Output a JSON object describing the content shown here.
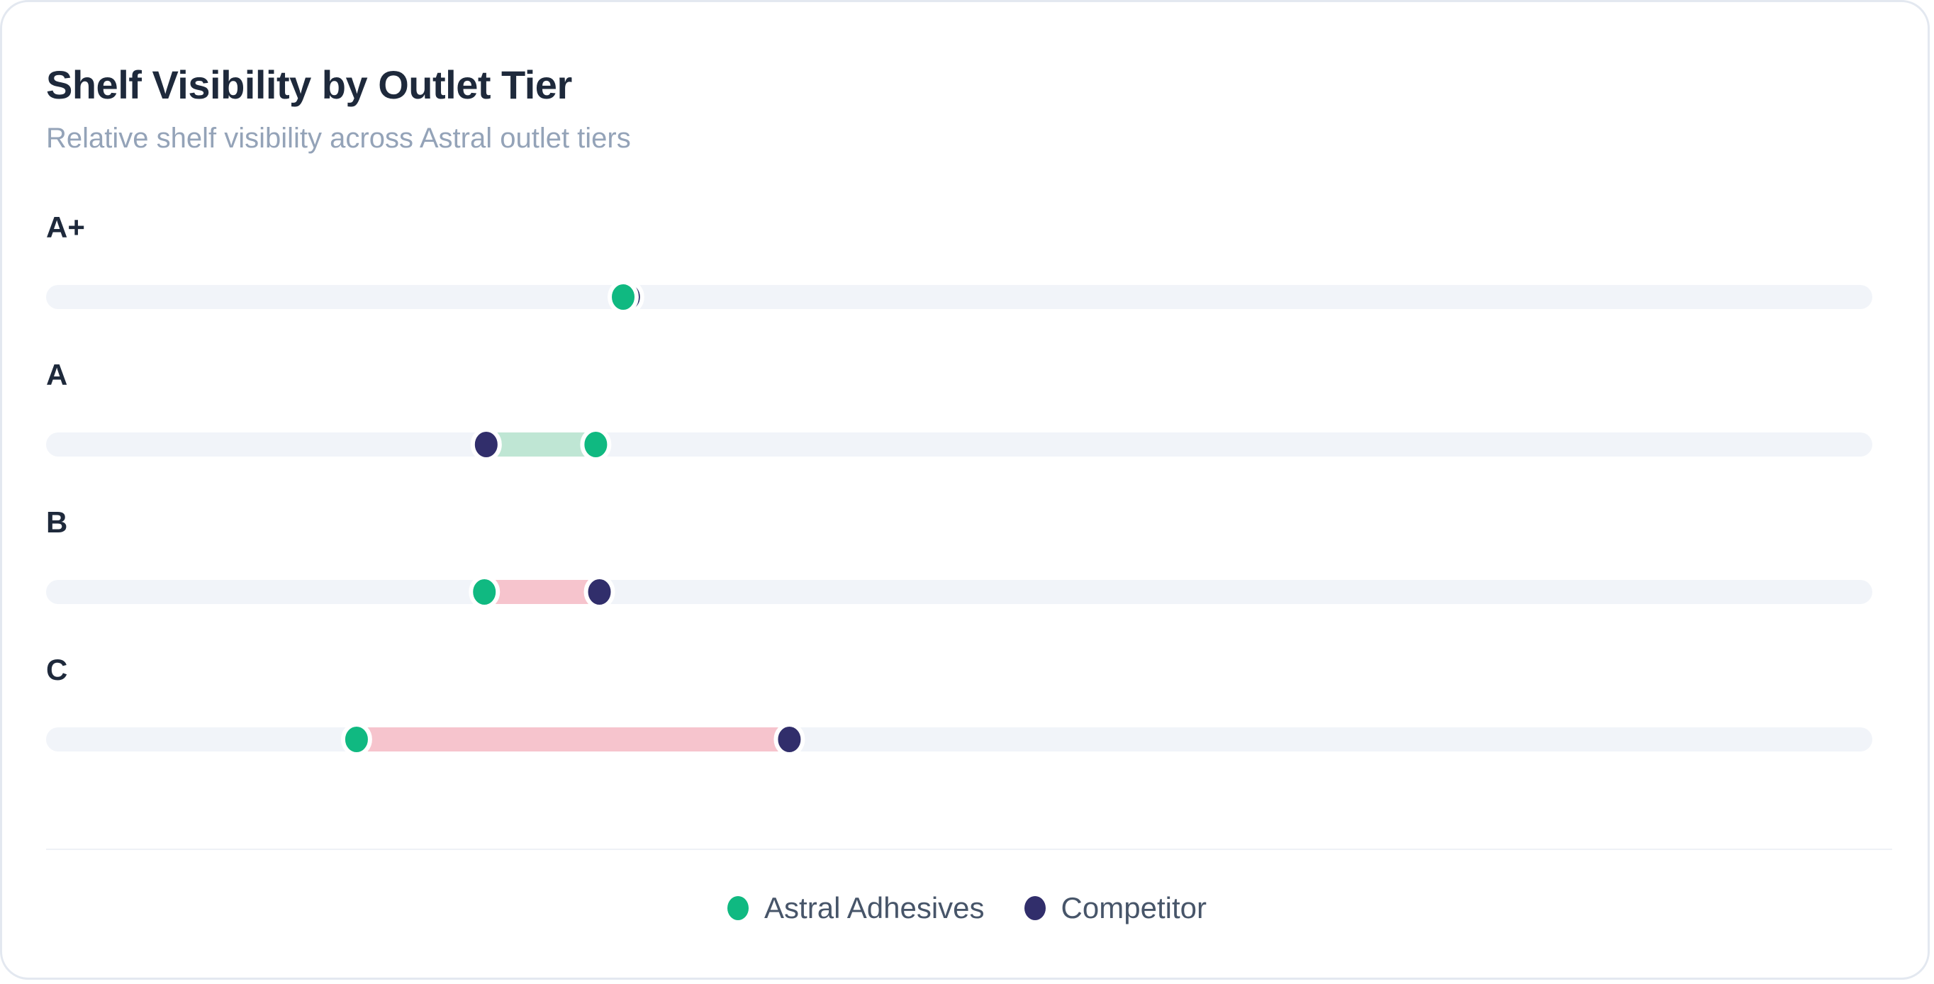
{
  "chart_data": {
    "type": "dumbbell",
    "title": "Shelf Visibility by Outlet Tier",
    "subtitle": "Relative shelf visibility across Astral outlet tiers",
    "xlim": [
      0,
      100
    ],
    "categories": [
      "A+",
      "A",
      "B",
      "C"
    ],
    "series": [
      {
        "name": "Astral Adhesives",
        "color": "#10b981",
        "values": [
          31.6,
          30.1,
          24.0,
          17.0
        ]
      },
      {
        "name": "Competitor",
        "color": "#312e6b",
        "values": [
          31.9,
          24.1,
          30.3,
          40.7
        ]
      }
    ],
    "gap_colors": {
      "astral_ahead": "#bfe6d4",
      "competitor_ahead": "#f6c4cd"
    },
    "track_color": "#f1f4f9",
    "legend_position": "bottom-center"
  }
}
